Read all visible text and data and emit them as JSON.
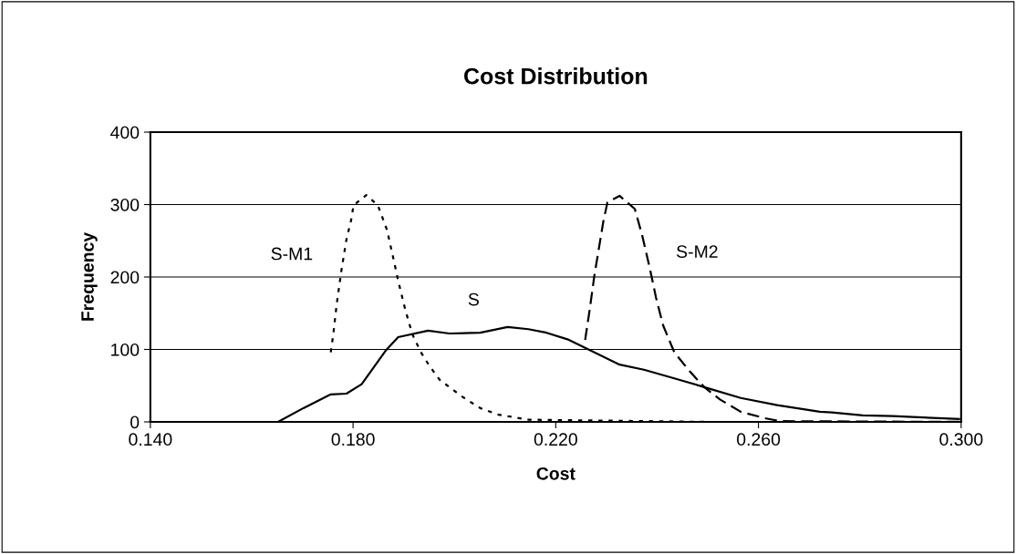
{
  "chart_data": {
    "type": "line",
    "title": "Cost Distribution",
    "xlabel": "Cost",
    "ylabel": "Frequency",
    "xlim": [
      0.14,
      0.3
    ],
    "xticks": [
      {
        "value": 0.14,
        "label": "0.140"
      },
      {
        "value": 0.18,
        "label": "0.180"
      },
      {
        "value": 0.22,
        "label": "0.220"
      },
      {
        "value": 0.26,
        "label": "0.260"
      },
      {
        "value": 0.3,
        "label": "0.300"
      }
    ],
    "ylim": [
      0,
      400
    ],
    "yticks": [
      0,
      100,
      200,
      300,
      400
    ],
    "grid": "y",
    "legend": false,
    "marker": "none",
    "series": [
      {
        "name": "S-M1",
        "color": "#000000",
        "line_style": "dotted",
        "x": [
          0.1756,
          0.1761,
          0.1768,
          0.1777,
          0.1787,
          0.1796,
          0.1801,
          0.1826,
          0.1849,
          0.1867,
          0.1881,
          0.189,
          0.1903,
          0.1917,
          0.1934,
          0.1951,
          0.1971,
          0.2015,
          0.2051,
          0.2087,
          0.2146,
          0.25,
          0.3
        ],
        "values": [
          96,
          121,
          164,
          209,
          252,
          278,
          299,
          313,
          299,
          265,
          221,
          192,
          155,
          121,
          96,
          77,
          58,
          35,
          19,
          10,
          3,
          0,
          0
        ]
      },
      {
        "name": "S",
        "color": "#000000",
        "line_style": "solid",
        "x": [
          0.1652,
          0.1702,
          0.1756,
          0.1787,
          0.1817,
          0.1864,
          0.1889,
          0.1948,
          0.199,
          0.2051,
          0.2105,
          0.2146,
          0.2182,
          0.2223,
          0.2259,
          0.2326,
          0.2374,
          0.2434,
          0.2493,
          0.2565,
          0.2637,
          0.2721,
          0.2745,
          0.2806,
          0.2865,
          0.2925,
          0.2996
        ],
        "values": [
          0,
          19,
          38,
          39,
          52,
          98,
          117,
          126,
          122,
          123,
          131,
          128,
          123,
          114,
          102,
          79,
          72,
          60,
          48,
          33,
          23,
          14,
          13,
          9,
          8,
          6,
          4
        ]
      },
      {
        "name": "S-M2",
        "color": "#000000",
        "line_style": "dashed",
        "x": [
          0.2258,
          0.2267,
          0.2276,
          0.2285,
          0.2294,
          0.2302,
          0.2326,
          0.2356,
          0.237,
          0.2385,
          0.2398,
          0.2412,
          0.2434,
          0.2464,
          0.2493,
          0.2524,
          0.2565,
          0.2613,
          0.2643,
          0.3
        ],
        "values": [
          113,
          155,
          201,
          239,
          277,
          303,
          312,
          294,
          259,
          214,
          171,
          133,
          96,
          70,
          48,
          31,
          14,
          5,
          1,
          0
        ]
      }
    ]
  }
}
